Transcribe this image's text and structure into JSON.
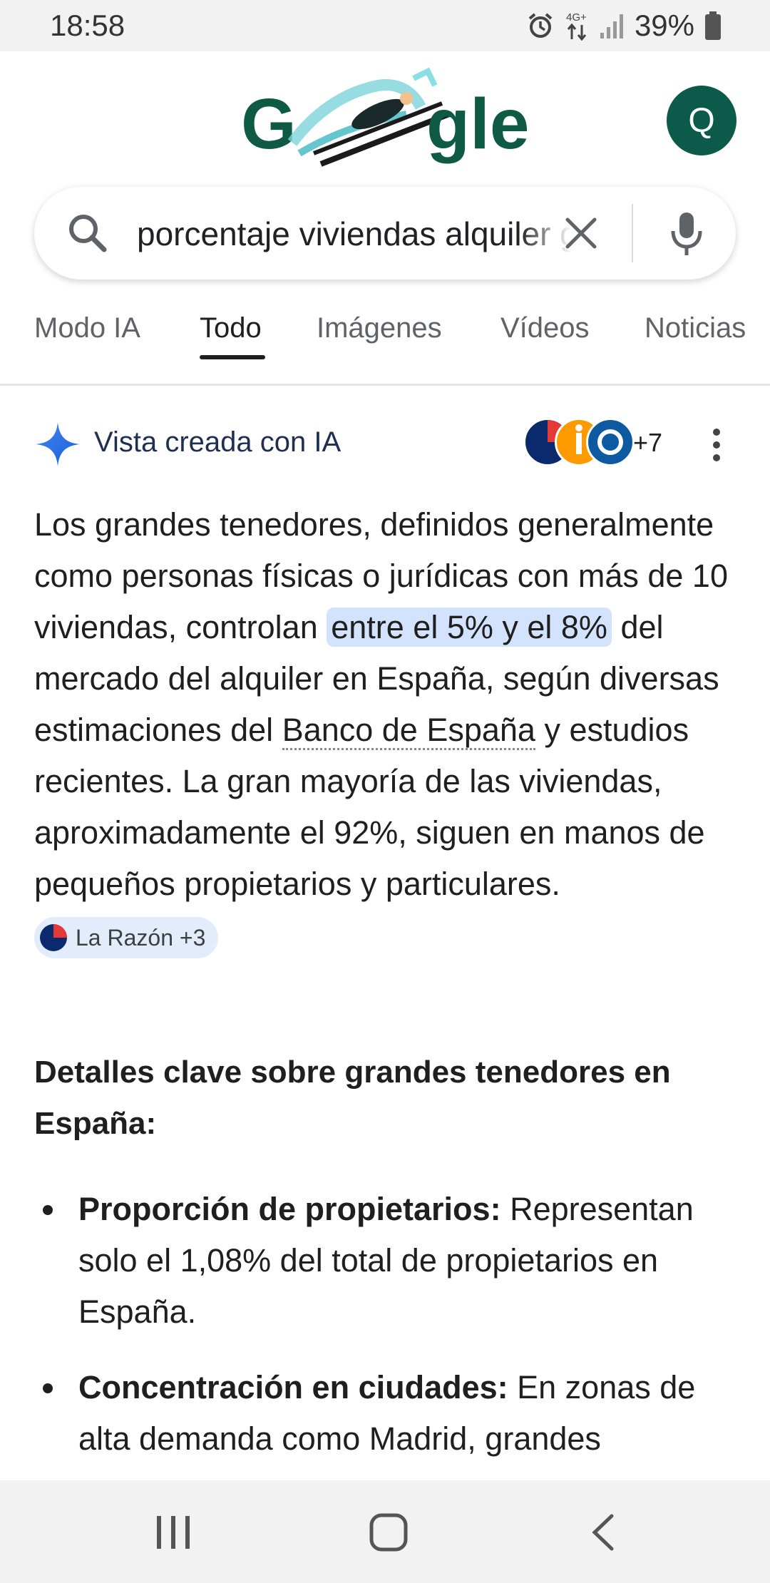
{
  "status_bar": {
    "time": "18:58",
    "network": "4G+",
    "battery": "39%",
    "icons": [
      "alarm-icon",
      "data-arrows-icon",
      "signal-icon",
      "battery-icon"
    ]
  },
  "header": {
    "logo_text_left": "G",
    "logo_text_right": "gle",
    "avatar_letter": "Q"
  },
  "search": {
    "query": "porcentaje viviendas alquiler grandes tenedores"
  },
  "tabs": [
    {
      "label": "Modo IA"
    },
    {
      "label": "Todo"
    },
    {
      "label": "Imágenes"
    },
    {
      "label": "Vídeos"
    },
    {
      "label": "Noticias"
    }
  ],
  "ai_overview": {
    "title": "Vista creada con IA",
    "sources_more": "+7",
    "answer_part1": "Los grandes tenedores, definidos generalmente como personas físicas o jurídicas con más de 10 viviendas, controlan ",
    "answer_highlight": "entre el 5% y el 8%",
    "answer_part2": " del mercado del alquiler en España, según diversas estimaciones del ",
    "answer_link": "Banco de España",
    "answer_part3": " y estudios recientes. La gran mayoría de las viviendas, aproximadamente el 92%, siguen en manos de pequeños propietarios y particulares.",
    "citation_chip": "La Razón +3",
    "details_title": "Detalles clave sobre grandes tenedores en España:",
    "bullets": [
      {
        "bold": "Proporción de propietarios:",
        "text": " Representan solo el 1,08% del total de propietarios en España."
      },
      {
        "bold": "Concentración en ciudades:",
        "text": " En zonas de alta demanda como Madrid, grandes"
      }
    ]
  },
  "colors": {
    "accent_blue": "#4285f4",
    "highlight": "#d3e3fd",
    "avatar_bg": "#0b5a4a"
  }
}
